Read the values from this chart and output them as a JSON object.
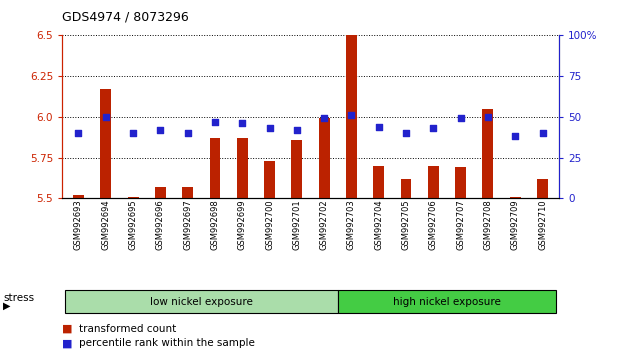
{
  "title": "GDS4974 / 8073296",
  "samples": [
    "GSM992693",
    "GSM992694",
    "GSM992695",
    "GSM992696",
    "GSM992697",
    "GSM992698",
    "GSM992699",
    "GSM992700",
    "GSM992701",
    "GSM992702",
    "GSM992703",
    "GSM992704",
    "GSM992705",
    "GSM992706",
    "GSM992707",
    "GSM992708",
    "GSM992709",
    "GSM992710"
  ],
  "red_values": [
    5.52,
    6.17,
    5.51,
    5.57,
    5.57,
    5.87,
    5.87,
    5.73,
    5.86,
    5.99,
    6.5,
    5.7,
    5.62,
    5.7,
    5.69,
    6.05,
    5.51,
    5.62
  ],
  "blue_values": [
    40,
    50,
    40,
    42,
    40,
    47,
    46,
    43,
    42,
    49,
    51,
    44,
    40,
    43,
    49,
    50,
    38,
    40
  ],
  "ylim_left": [
    5.5,
    6.5
  ],
  "ylim_right": [
    0,
    100
  ],
  "yticks_left": [
    5.5,
    5.75,
    6.0,
    6.25,
    6.5
  ],
  "yticks_right": [
    0,
    25,
    50,
    75,
    100
  ],
  "group1_label": "low nickel exposure",
  "group2_label": "high nickel exposure",
  "group1_count": 10,
  "group2_count": 8,
  "stress_label": "stress",
  "legend1": "transformed count",
  "legend2": "percentile rank within the sample",
  "bar_color": "#bb2200",
  "dot_color": "#2222cc",
  "group1_color": "#aaddaa",
  "group2_color": "#44cc44",
  "bg_color": "#ffffff",
  "left_axis_color": "#cc2200",
  "right_axis_color": "#2222cc"
}
